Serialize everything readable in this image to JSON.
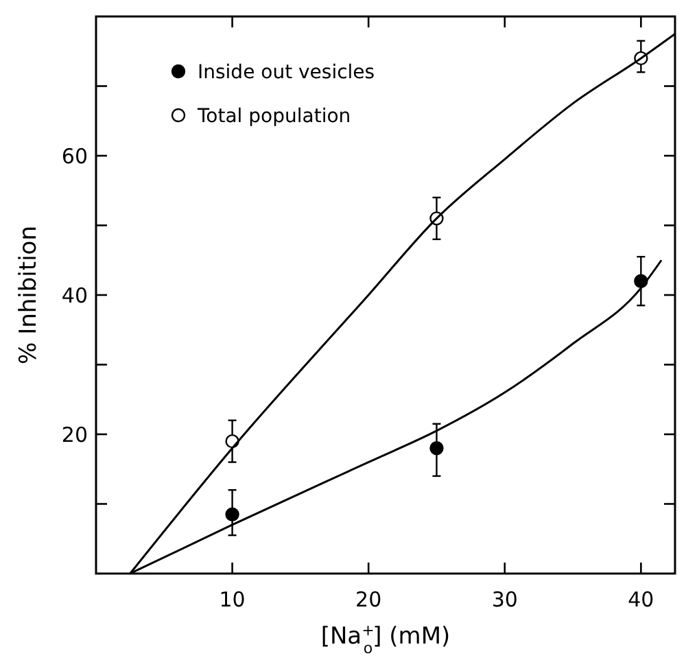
{
  "chart_data": {
    "type": "scatter",
    "xlabel": "[Na$^{+}$$_{o}$]  (mM)",
    "ylabel": "% Inhibition",
    "xlim": [
      0,
      42.5
    ],
    "ylim": [
      0,
      80
    ],
    "xticks": [
      10,
      20,
      30,
      40
    ],
    "yticks": [
      {
        "value": 10,
        "label": null
      },
      20,
      {
        "value": 30,
        "label": null
      },
      40,
      {
        "value": 50,
        "label": null
      },
      60,
      {
        "value": 70,
        "label": null
      }
    ],
    "legend": "top left",
    "grid": false,
    "series": [
      {
        "name": "Inside out vesicles",
        "marker": "circle",
        "color": "#000000",
        "x": [
          10,
          25,
          40
        ],
        "values": [
          8.5,
          18,
          42
        ],
        "errors": [
          [
            5.5,
            12
          ],
          [
            14,
            21.5
          ],
          [
            38.5,
            45.5
          ]
        ]
      },
      {
        "name": "Total population",
        "marker": "circle",
        "color": "#ffffff",
        "x": [
          10,
          25,
          40
        ],
        "values": [
          19,
          51,
          74
        ],
        "errors": [
          [
            16,
            22
          ],
          [
            48,
            54
          ],
          [
            72,
            76.5
          ]
        ]
      },
      {
        "type": "line",
        "marker": "none",
        "color": "#000000",
        "x": [
          2.5,
          10,
          20,
          25,
          30,
          35,
          40,
          41.5
        ],
        "values": [
          0,
          7,
          16,
          20.5,
          26,
          33,
          41,
          45
        ]
      },
      {
        "type": "line",
        "marker": "none",
        "color": "#000000",
        "x": [
          2.5,
          10,
          20,
          25,
          30,
          35,
          40,
          42.5
        ],
        "values": [
          0,
          18,
          40,
          51,
          59.5,
          67.5,
          74,
          77.5
        ]
      }
    ]
  }
}
